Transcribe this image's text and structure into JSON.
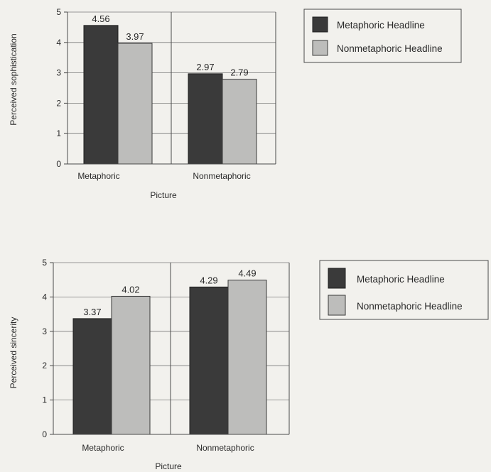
{
  "legend_labels": [
    "Metaphoric Headline",
    "Nonmetaphoric Headline"
  ],
  "colors": {
    "series_dark": "#3a3a3a",
    "series_light": "#bdbdbb"
  },
  "chart_data": [
    {
      "type": "bar",
      "categories": [
        "Metaphoric",
        "Nonmetaphoric"
      ],
      "series": [
        {
          "name": "Metaphoric Headline",
          "values": [
            4.56,
            2.97
          ],
          "labels": [
            "4.56",
            "2.97"
          ]
        },
        {
          "name": "Nonmetaphoric Headline",
          "values": [
            3.97,
            2.79
          ],
          "labels": [
            "3.97",
            "2.79"
          ]
        }
      ],
      "xlabel": "Picture",
      "ylabel": "Perceived sophistication",
      "ylim": [
        0,
        5
      ],
      "yticks": [
        "0",
        "1",
        "2",
        "3",
        "4",
        "5"
      ],
      "grid": true,
      "legend": "right"
    },
    {
      "type": "bar",
      "categories": [
        "Metaphoric",
        "Nonmetaphoric"
      ],
      "series": [
        {
          "name": "Metaphoric Headline",
          "values": [
            3.37,
            4.29
          ],
          "labels": [
            "3.37",
            "4.29"
          ]
        },
        {
          "name": "Nonmetaphoric Headline",
          "values": [
            4.02,
            4.49
          ],
          "labels": [
            "4.02",
            "4.49"
          ]
        }
      ],
      "xlabel": "Picture",
      "ylabel": "Perceived sincerity",
      "ylim": [
        0,
        5
      ],
      "yticks": [
        "0",
        "1",
        "2",
        "3",
        "4",
        "5"
      ],
      "grid": true,
      "legend": "right"
    }
  ]
}
